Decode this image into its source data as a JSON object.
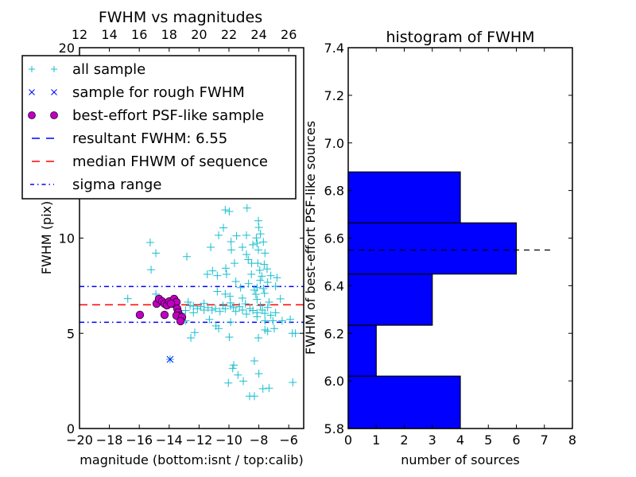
{
  "chart_data": [
    {
      "type": "scatter",
      "title": "FWHM vs magnitudes",
      "xlabel": "magnitude (bottom:isnt / top:calib)",
      "ylabel": "FWHM (pix)",
      "xlim": [
        -20,
        -5
      ],
      "ylim": [
        0,
        20
      ],
      "x_ticks": [
        -20,
        -18,
        -16,
        -14,
        -12,
        -10,
        -8,
        -6
      ],
      "x_tick_labels": [
        "−20",
        "−18",
        "−16",
        "−14",
        "−12",
        "−10",
        "−8",
        "−6"
      ],
      "y_ticks": [
        0,
        5,
        10,
        20
      ],
      "y_tick_labels": [
        "0",
        "5",
        "10",
        "20"
      ],
      "top_axis": {
        "offset": 32,
        "ticks": [
          12,
          14,
          16,
          18,
          20,
          22,
          24,
          26
        ],
        "tick_labels": [
          "12",
          "14",
          "16",
          "18",
          "20",
          "22",
          "24",
          "26"
        ]
      },
      "legend_position": "upper-left",
      "series": [
        {
          "name": "all sample",
          "marker": "plus",
          "color": "#17becf",
          "points": [
            [
              -15.27,
              9.77
            ],
            [
              -14.89,
              9.21
            ],
            [
              -15.21,
              8.34
            ],
            [
              -16.77,
              6.82
            ],
            [
              -14.89,
              7.06
            ],
            [
              -12.82,
              9.03
            ],
            [
              -10.25,
              11.48
            ],
            [
              -9.98,
              11.4
            ],
            [
              -8.79,
              11.58
            ],
            [
              -10.37,
              10.54
            ],
            [
              -11.22,
              9.52
            ],
            [
              -10.69,
              10.15
            ],
            [
              -9.86,
              9.81
            ],
            [
              -9.49,
              10.12
            ],
            [
              -8.83,
              10.15
            ],
            [
              -9.1,
              9.52
            ],
            [
              -9.84,
              9.38
            ],
            [
              -8.03,
              10.91
            ],
            [
              -8.0,
              10.56
            ],
            [
              -7.89,
              10.22
            ],
            [
              -8.17,
              10.01
            ],
            [
              -8.12,
              9.73
            ],
            [
              -8.03,
              9.38
            ],
            [
              -7.59,
              9.21
            ],
            [
              -8.83,
              9.14
            ],
            [
              -9.63,
              8.68
            ],
            [
              -10.21,
              8.42
            ],
            [
              -11.1,
              8.28
            ],
            [
              -11.45,
              8.1
            ],
            [
              -10.78,
              8.03
            ],
            [
              -9.54,
              7.72
            ],
            [
              -10.16,
              8.1
            ],
            [
              -8.71,
              8.87
            ],
            [
              -8.48,
              8.68
            ],
            [
              -8.07,
              8.68
            ],
            [
              -7.64,
              8.62
            ],
            [
              -7.45,
              8.38
            ],
            [
              -7.94,
              8.31
            ],
            [
              -7.2,
              8.03
            ],
            [
              -6.79,
              7.92
            ],
            [
              -6.88,
              7.47
            ],
            [
              -8.69,
              7.61
            ],
            [
              -9.22,
              7.4
            ],
            [
              -8.12,
              7.4
            ],
            [
              -7.41,
              7.68
            ],
            [
              -7.91,
              7.78
            ],
            [
              -7.62,
              7.1
            ],
            [
              -8.3,
              7.27
            ],
            [
              -10.78,
              7.2
            ],
            [
              -10.25,
              7.06
            ],
            [
              -9.93,
              6.94
            ],
            [
              -9.1,
              6.85
            ],
            [
              -6.56,
              6.81
            ],
            [
              -7.32,
              6.64
            ],
            [
              -8.12,
              6.78
            ],
            [
              -11.67,
              6.57
            ],
            [
              -12.73,
              6.64
            ],
            [
              -12.38,
              6.43
            ],
            [
              -12.11,
              6.29
            ],
            [
              -11.67,
              6.22
            ],
            [
              -11.13,
              6.22
            ],
            [
              -10.6,
              6.15
            ],
            [
              -10.25,
              6.29
            ],
            [
              -9.89,
              6.43
            ],
            [
              -9.54,
              6.15
            ],
            [
              -9.1,
              6.22
            ],
            [
              -8.83,
              6.01
            ],
            [
              -8.12,
              6.08
            ],
            [
              -7.77,
              6.22
            ],
            [
              -7.41,
              6.36
            ],
            [
              -6.88,
              6.08
            ],
            [
              -12.38,
              6.08
            ],
            [
              -12.91,
              5.66
            ],
            [
              -11.31,
              5.73
            ],
            [
              -10.87,
              5.39
            ],
            [
              -10.69,
              5.25
            ],
            [
              -9.89,
              5.59
            ],
            [
              -8.12,
              5.87
            ],
            [
              -7.59,
              5.66
            ],
            [
              -7.06,
              5.66
            ],
            [
              -6.44,
              5.66
            ],
            [
              -5.9,
              5.73
            ],
            [
              -5.76,
              5.0
            ],
            [
              -5.55,
              5.0
            ],
            [
              -6.97,
              5.25
            ],
            [
              -7.59,
              5.18
            ],
            [
              -7.41,
              5.11
            ],
            [
              -8.03,
              4.76
            ],
            [
              -9.98,
              4.8
            ],
            [
              -12.55,
              4.76
            ],
            [
              -12.29,
              5.04
            ],
            [
              -8.3,
              3.55
            ],
            [
              -9.68,
              3.33
            ],
            [
              -9.75,
              3.16
            ],
            [
              -9.4,
              2.81
            ],
            [
              -9.04,
              2.49
            ],
            [
              -8.0,
              2.88
            ],
            [
              -10.04,
              2.39
            ],
            [
              -5.73,
              2.42
            ],
            [
              -7.73,
              2.09
            ],
            [
              -7.32,
              2.12
            ],
            [
              -8.62,
              1.7
            ],
            [
              -8.3,
              1.7
            ],
            [
              -13.94,
              3.63
            ],
            [
              -12.6,
              6.45
            ],
            [
              -11.9,
              6.4
            ],
            [
              -11.4,
              6.35
            ],
            [
              -10.9,
              6.3
            ],
            [
              -10.4,
              6.45
            ],
            [
              -9.7,
              6.35
            ],
            [
              -9.3,
              6.4
            ],
            [
              -8.6,
              6.3
            ],
            [
              -8.4,
              6.2
            ],
            [
              -7.9,
              6.45
            ],
            [
              -7.6,
              6.05
            ],
            [
              -7.2,
              5.95
            ],
            [
              -8.9,
              6.55
            ],
            [
              -9.9,
              6.6
            ],
            [
              -12.9,
              6.2
            ],
            [
              -13.2,
              6.05
            ],
            [
              -8.2,
              7.05
            ],
            [
              -7.7,
              7.35
            ],
            [
              -8.5,
              8.1
            ],
            [
              -7.8,
              8.0
            ],
            [
              -8.4,
              9.65
            ],
            [
              -7.7,
              9.8
            ]
          ]
        },
        {
          "name": "sample for rough FWHM",
          "marker": "x",
          "color": "#0000ff",
          "points": [
            [
              -13.94,
              3.63
            ]
          ]
        },
        {
          "name": "best-effort PSF-like sample",
          "marker": "circle",
          "color": "#bf00bf",
          "points": [
            [
              -15.96,
              5.97
            ],
            [
              -14.31,
              5.97
            ],
            [
              -14.84,
              6.56
            ],
            [
              -14.68,
              6.81
            ],
            [
              -14.47,
              6.68
            ],
            [
              -14.31,
              6.56
            ],
            [
              -14.15,
              6.47
            ],
            [
              -13.99,
              6.68
            ],
            [
              -13.78,
              6.56
            ],
            [
              -13.67,
              6.81
            ],
            [
              -13.51,
              6.64
            ],
            [
              -13.46,
              6.3
            ],
            [
              -13.4,
              6.1
            ],
            [
              -13.3,
              5.93
            ],
            [
              -13.51,
              5.93
            ],
            [
              -13.14,
              5.85
            ],
            [
              -13.24,
              5.64
            ],
            [
              -13.88,
              6.56
            ]
          ]
        }
      ],
      "reference_lines": [
        {
          "name": "resultant FWHM: 6.55",
          "style": "dashed",
          "color": "#0000ff",
          "y": null
        },
        {
          "name": "median FHWM of sequence",
          "style": "dashed",
          "color": "#ff0000",
          "y": 6.5
        },
        {
          "name": "sigma range",
          "style": "dashdot",
          "color": "#0000ff",
          "y": [
            5.58,
            7.46
          ]
        }
      ],
      "legend": [
        {
          "label": "all sample",
          "marker": "plus",
          "color": "#17becf"
        },
        {
          "label": "sample for rough FWHM",
          "marker": "x",
          "color": "#0000ff"
        },
        {
          "label": "best-effort PSF-like sample",
          "marker": "circle",
          "color": "#bf00bf"
        },
        {
          "label": "resultant FWHM: 6.55",
          "marker": "dashed",
          "color": "#0000ff"
        },
        {
          "label": "median FHWM of sequence",
          "marker": "dashed",
          "color": "#ff0000"
        },
        {
          "label": "sigma range",
          "marker": "dashdot",
          "color": "#0000ff"
        }
      ]
    },
    {
      "type": "bar",
      "orientation": "horizontal",
      "title": "histogram of FWHM",
      "xlabel": "number of sources",
      "ylabel": "FWHM of best-effort PSF-like sources",
      "xlim": [
        0,
        8
      ],
      "ylim": [
        5.8,
        7.4
      ],
      "x_ticks": [
        0,
        1,
        2,
        3,
        4,
        5,
        6,
        7,
        8
      ],
      "x_tick_labels": [
        "0",
        "1",
        "2",
        "3",
        "4",
        "5",
        "6",
        "7",
        "8"
      ],
      "y_ticks": [
        5.8,
        6.0,
        6.2,
        6.4,
        6.6,
        6.8,
        7.0,
        7.2,
        7.4
      ],
      "y_tick_labels": [
        "5.8",
        "6.0",
        "6.2",
        "6.4",
        "6.6",
        "6.8",
        "7.0",
        "7.2",
        "7.4"
      ],
      "bin_edges": [
        5.806,
        6.02,
        6.234,
        6.449,
        6.664,
        6.878
      ],
      "values": [
        4,
        1,
        3,
        6,
        4
      ],
      "bar_color": "#0000ff",
      "reference_line": {
        "y": 6.55,
        "x_range": [
          0,
          7.23
        ],
        "style": "dashed",
        "color": "#000000"
      },
      "grid": false
    }
  ]
}
